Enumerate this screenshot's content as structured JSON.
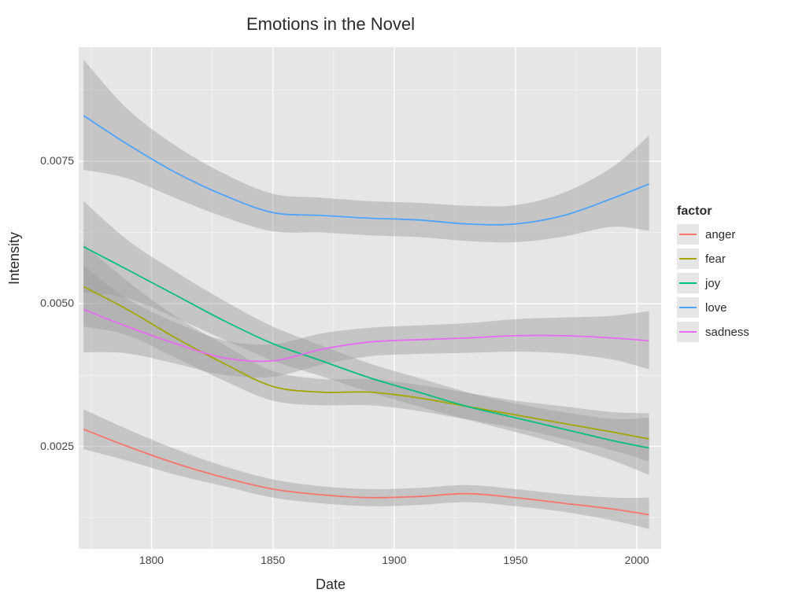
{
  "chart": {
    "type": "line-with-ribbon",
    "title": "Emotions in the Novel",
    "title_fontsize": 22,
    "xlabel": "Date",
    "ylabel": "Intensity",
    "label_fontsize": 18,
    "panel_bg": "#e6e6e6",
    "grid_major_color": "#ffffff",
    "grid_minor_color": "#f4f4f4",
    "ribbon_fill": "#9e9e9e",
    "ribbon_opacity": 0.45,
    "line_width": 1.8,
    "x": {
      "lim": [
        1770,
        2010
      ],
      "major_ticks": [
        1800,
        1850,
        1900,
        1950,
        2000
      ],
      "minor_ticks": [
        1775,
        1825,
        1875,
        1925,
        1975
      ]
    },
    "y": {
      "lim": [
        0.0007,
        0.0095
      ],
      "major_ticks": [
        0.0025,
        0.005,
        0.0075
      ],
      "minor_ticks": [
        0.00125,
        0.00375,
        0.00625,
        0.00875
      ]
    },
    "legend": {
      "title": "factor",
      "position": "right",
      "items": [
        "anger",
        "fear",
        "joy",
        "love",
        "sadness"
      ]
    },
    "series": {
      "anger": {
        "color": "#f8766d",
        "x": [
          1772,
          1790,
          1810,
          1830,
          1850,
          1870,
          1890,
          1910,
          1930,
          1950,
          1970,
          1990,
          2005
        ],
        "y": [
          0.0028,
          0.0025,
          0.0022,
          0.00195,
          0.00175,
          0.00165,
          0.0016,
          0.00162,
          0.00167,
          0.0016,
          0.0015,
          0.0014,
          0.0013
        ],
        "lo": [
          0.00245,
          0.00225,
          0.002,
          0.0018,
          0.0016,
          0.0015,
          0.00145,
          0.00147,
          0.00152,
          0.00145,
          0.00135,
          0.0012,
          0.00105
        ],
        "hi": [
          0.00315,
          0.0028,
          0.00245,
          0.00215,
          0.00192,
          0.0018,
          0.00175,
          0.00177,
          0.00182,
          0.00175,
          0.00166,
          0.0016,
          0.0016
        ]
      },
      "fear": {
        "color": "#a3a500",
        "x": [
          1772,
          1790,
          1810,
          1830,
          1850,
          1870,
          1890,
          1910,
          1930,
          1950,
          1970,
          1990,
          2005
        ],
        "y": [
          0.0053,
          0.0049,
          0.0044,
          0.00395,
          0.00355,
          0.00345,
          0.00345,
          0.00335,
          0.0032,
          0.00305,
          0.0029,
          0.00275,
          0.00263
        ],
        "lo": [
          0.0046,
          0.00445,
          0.00405,
          0.00365,
          0.0033,
          0.00322,
          0.00322,
          0.00312,
          0.00297,
          0.00282,
          0.00263,
          0.00243,
          0.00223
        ],
        "hi": [
          0.00605,
          0.0054,
          0.00478,
          0.00428,
          0.00382,
          0.00368,
          0.00368,
          0.00358,
          0.00344,
          0.0033,
          0.0032,
          0.0031,
          0.00308
        ]
      },
      "joy": {
        "color": "#00bf7d",
        "x": [
          1772,
          1790,
          1810,
          1830,
          1850,
          1870,
          1890,
          1910,
          1930,
          1950,
          1970,
          1990,
          2005
        ],
        "y": [
          0.006,
          0.0056,
          0.00515,
          0.0047,
          0.0043,
          0.004,
          0.0037,
          0.00345,
          0.0032,
          0.003,
          0.0028,
          0.0026,
          0.00247
        ],
        "lo": [
          0.0052,
          0.0051,
          0.00475,
          0.00437,
          0.004,
          0.00373,
          0.00345,
          0.0032,
          0.00297,
          0.00275,
          0.00252,
          0.00225,
          0.002
        ],
        "hi": [
          0.0068,
          0.00612,
          0.00556,
          0.00505,
          0.0046,
          0.00427,
          0.00395,
          0.0037,
          0.00345,
          0.00325,
          0.0031,
          0.00298,
          0.003
        ]
      },
      "love": {
        "color": "#4ea3ff",
        "x": [
          1772,
          1790,
          1810,
          1830,
          1850,
          1870,
          1890,
          1910,
          1930,
          1950,
          1970,
          1990,
          2005
        ],
        "y": [
          0.0083,
          0.0078,
          0.0073,
          0.0069,
          0.0066,
          0.00655,
          0.0065,
          0.00647,
          0.0064,
          0.0064,
          0.00655,
          0.00685,
          0.0071
        ],
        "lo": [
          0.00735,
          0.0072,
          0.00685,
          0.00652,
          0.00627,
          0.00625,
          0.0062,
          0.00617,
          0.0061,
          0.00608,
          0.00618,
          0.00635,
          0.00628
        ],
        "hi": [
          0.00928,
          0.00842,
          0.00777,
          0.00728,
          0.00693,
          0.00686,
          0.0068,
          0.00677,
          0.00672,
          0.00673,
          0.00695,
          0.0074,
          0.00795
        ]
      },
      "sadness": {
        "color": "#e76bf3",
        "x": [
          1772,
          1790,
          1810,
          1830,
          1850,
          1870,
          1890,
          1910,
          1930,
          1950,
          1970,
          1990,
          2005
        ],
        "y": [
          0.0049,
          0.0046,
          0.0043,
          0.00405,
          0.004,
          0.0042,
          0.00433,
          0.00437,
          0.0044,
          0.00444,
          0.00444,
          0.0044,
          0.00435
        ],
        "lo": [
          0.00415,
          0.00413,
          0.00395,
          0.00375,
          0.00372,
          0.00393,
          0.00408,
          0.00412,
          0.00414,
          0.00416,
          0.00413,
          0.00402,
          0.00385
        ],
        "hi": [
          0.00567,
          0.00509,
          0.00467,
          0.00436,
          0.00429,
          0.00448,
          0.00458,
          0.00462,
          0.00466,
          0.00473,
          0.00476,
          0.00479,
          0.00487
        ]
      }
    }
  }
}
